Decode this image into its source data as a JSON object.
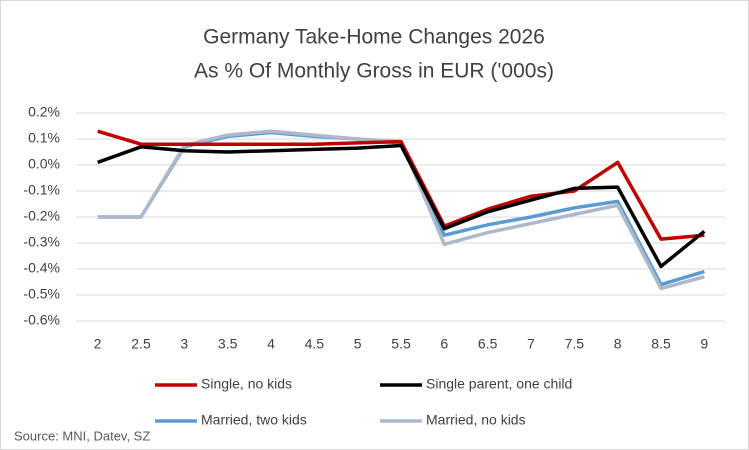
{
  "chart_data": {
    "type": "line",
    "title": "Germany Take-Home Changes 2026",
    "subtitle": "As % Of Monthly Gross in EUR ('000s)",
    "source": "Source: MNI, Datev, SZ",
    "categories": [
      "2",
      "2.5",
      "3",
      "3.5",
      "4",
      "4.5",
      "5",
      "5.5",
      "6",
      "6.5",
      "7",
      "7.5",
      "8",
      "8.5",
      "9"
    ],
    "series": [
      {
        "name": "Single, no kids",
        "color": "#c00000",
        "values": [
          0.13,
          0.08,
          0.08,
          0.08,
          0.08,
          0.08,
          0.085,
          0.09,
          -0.235,
          -0.17,
          -0.12,
          -0.1,
          0.01,
          -0.285,
          -0.27
        ]
      },
      {
        "name": "Single parent, one child",
        "color": "#000000",
        "values": [
          0.01,
          0.07,
          0.055,
          0.05,
          0.055,
          0.06,
          0.065,
          0.075,
          -0.245,
          -0.18,
          -0.135,
          -0.09,
          -0.085,
          -0.39,
          -0.255
        ]
      },
      {
        "name": "Married, two kids",
        "color": "#5b9bd5",
        "values": [
          -0.2,
          -0.2,
          0.07,
          0.11,
          0.125,
          0.11,
          0.1,
          0.085,
          -0.27,
          -0.23,
          -0.2,
          -0.165,
          -0.14,
          -0.46,
          -0.41
        ]
      },
      {
        "name": "Married, no kids",
        "color": "#adb9ca",
        "values": [
          -0.2,
          -0.2,
          0.075,
          0.115,
          0.13,
          0.115,
          0.1,
          0.09,
          -0.305,
          -0.26,
          -0.225,
          -0.19,
          -0.155,
          -0.475,
          -0.43
        ]
      }
    ],
    "ylim": [
      -0.6,
      0.2
    ],
    "yticks": [
      {
        "value": -0.6,
        "label": "-0.6%"
      },
      {
        "value": -0.5,
        "label": "-0.5%"
      },
      {
        "value": -0.4,
        "label": "-0.4%"
      },
      {
        "value": -0.3,
        "label": "-0.3%"
      },
      {
        "value": -0.2,
        "label": "-0.2%"
      },
      {
        "value": -0.1,
        "label": "-0.1%"
      },
      {
        "value": 0,
        "label": "0.0%"
      },
      {
        "value": 0.1,
        "label": "0.1%"
      },
      {
        "value": 0.2,
        "label": "0.2%"
      }
    ],
    "grid": true,
    "legend": "bottom"
  }
}
